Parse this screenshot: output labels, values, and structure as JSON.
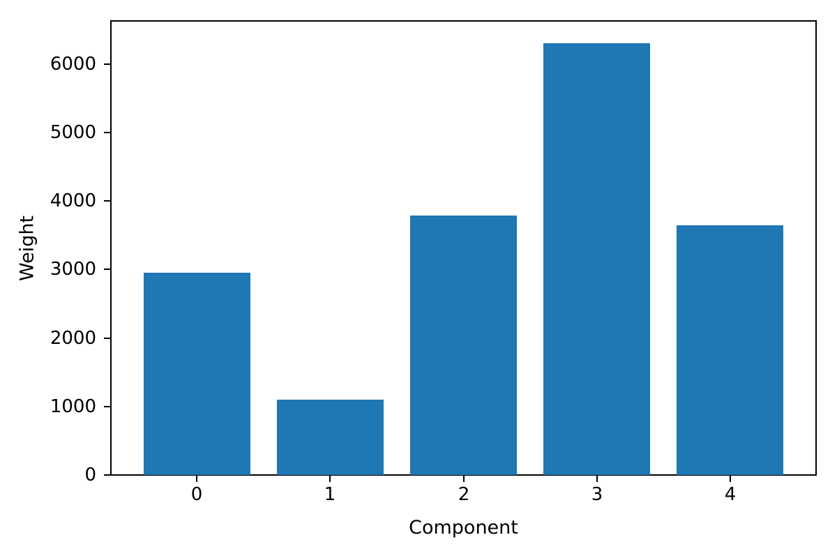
{
  "figure": {
    "background": "#ffffff"
  },
  "chart_data": {
    "type": "bar",
    "categories": [
      "0",
      "1",
      "2",
      "3",
      "4"
    ],
    "values": [
      2950,
      1100,
      3790,
      6300,
      3650
    ],
    "xlabel": "Component",
    "ylabel": "Weight",
    "ytick_labels": [
      "0",
      "1000",
      "2000",
      "3000",
      "4000",
      "5000",
      "6000"
    ],
    "ytick_values": [
      0,
      1000,
      2000,
      3000,
      4000,
      5000,
      6000
    ],
    "ylim": [
      0,
      6620
    ],
    "xlim_units": [
      -0.64,
      4.64
    ],
    "bar_width_units": 0.8,
    "bar_color": "#1f77b4",
    "axis_color": "#000000",
    "text_color": "#000000",
    "grid": false,
    "legend_position": "none"
  }
}
